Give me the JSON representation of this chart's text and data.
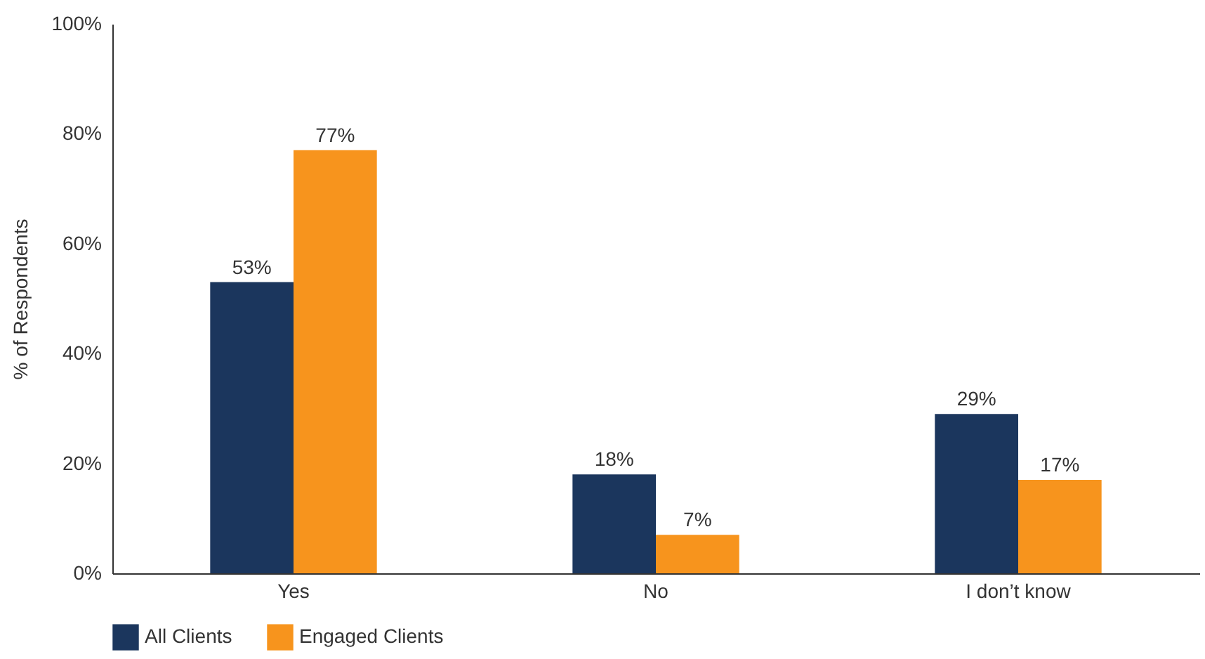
{
  "chart_data": {
    "type": "bar",
    "ylabel": "% of Respondents",
    "categories": [
      "Yes",
      "No",
      "I don’t know"
    ],
    "series": [
      {
        "name": "All Clients",
        "color": "#1b365d",
        "values": [
          53,
          18,
          29
        ],
        "value_labels": [
          "53%",
          "18%",
          "29%"
        ]
      },
      {
        "name": "Engaged Clients",
        "color": "#f7941d",
        "values": [
          77,
          7,
          17
        ],
        "value_labels": [
          "77%",
          "7%",
          "17%"
        ]
      }
    ],
    "ylim": [
      0,
      100
    ],
    "yticks": [
      {
        "value": 0,
        "label": "0%"
      },
      {
        "value": 20,
        "label": "20%"
      },
      {
        "value": 40,
        "label": "40%"
      },
      {
        "value": 60,
        "label": "60%"
      },
      {
        "value": 80,
        "label": "80%"
      },
      {
        "value": 100,
        "label": "100%"
      }
    ],
    "grid": false,
    "legend": "bottom"
  }
}
